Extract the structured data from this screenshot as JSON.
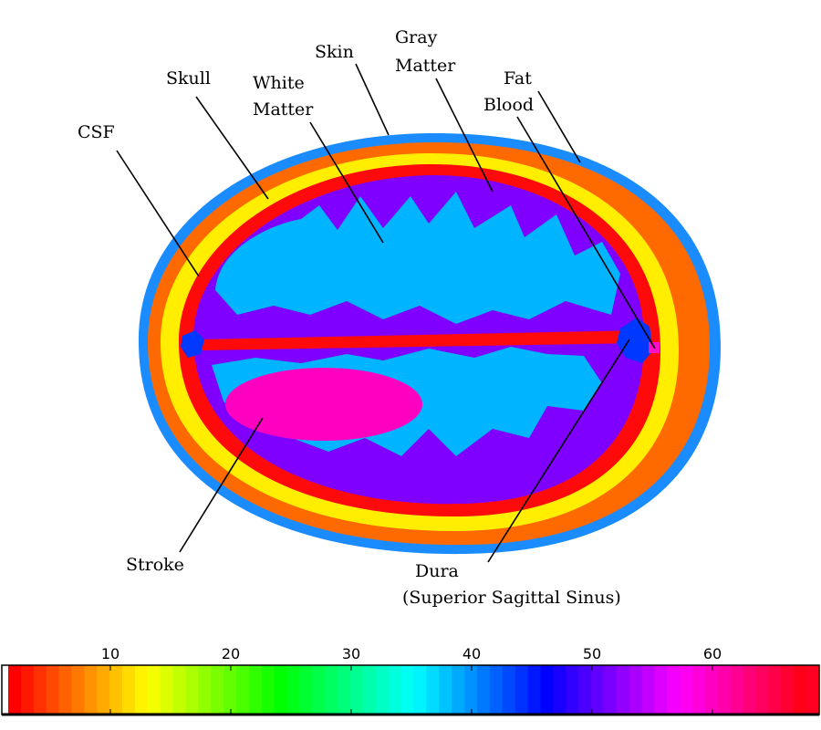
{
  "labels": {
    "csf": "CSF",
    "skull": "Skull",
    "white_matter_1": "White",
    "white_matter_2": "Matter",
    "skin": "Skin",
    "gray_matter_1": "Gray",
    "gray_matter_2": "Matter",
    "fat": "Fat",
    "blood": "Blood",
    "stroke": "Stroke",
    "dura_1": "Dura",
    "dura_2": "(Superior Sagittal Sinus)"
  },
  "tissue_colors": {
    "skin": "#1a8cff",
    "fat": "#ff6a00",
    "skull": "#ffee00",
    "csf": "#ff0a0a",
    "gray_matter": "#8000ff",
    "white_matter": "#00b4ff",
    "stroke": "#ff00c0",
    "dura": "#0038ff",
    "blood": "#ff10c8"
  },
  "colorbar": {
    "min": 1,
    "max": 68,
    "ticks": [
      "10",
      "20",
      "30",
      "40",
      "50",
      "60"
    ],
    "tick_values": [
      10,
      20,
      30,
      40,
      50,
      60
    ]
  }
}
